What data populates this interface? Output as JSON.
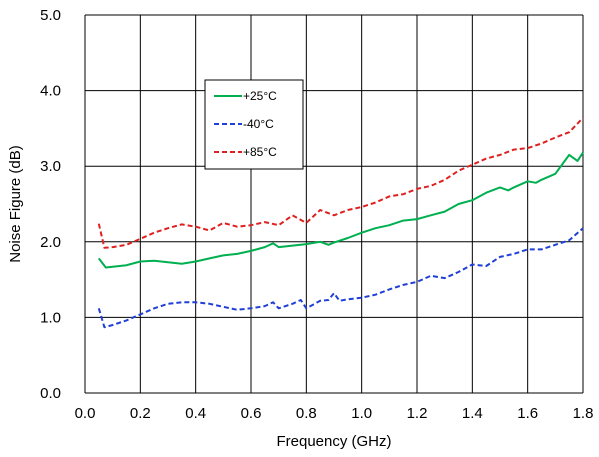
{
  "chart_data": {
    "type": "line",
    "title": "",
    "xlabel": "Frequency (GHz)",
    "ylabel": "Noise Figure (dB)",
    "xlim": [
      0,
      1.8
    ],
    "ylim": [
      0,
      5
    ],
    "xticks": [
      0,
      0.2,
      0.4,
      0.6,
      0.8,
      1.0,
      1.2,
      1.4,
      1.6,
      1.8
    ],
    "yticks": [
      0,
      1,
      2,
      3,
      4,
      5
    ],
    "xtick_labels": [
      "0.0",
      "0.2",
      "0.4",
      "0.6",
      "0.8",
      "1.0",
      "1.2",
      "1.4",
      "1.6",
      "1.8"
    ],
    "ytick_labels": [
      "0.0",
      "1.0",
      "2.0",
      "3.0",
      "4.0",
      "5.0"
    ],
    "grid": true,
    "legend_position": "upper-left-inside",
    "series": [
      {
        "name": "+25°C",
        "color": "#00b050",
        "dash": "solid",
        "x": [
          0.05,
          0.075,
          0.1,
          0.15,
          0.2,
          0.25,
          0.3,
          0.35,
          0.4,
          0.45,
          0.5,
          0.55,
          0.6,
          0.65,
          0.68,
          0.7,
          0.75,
          0.8,
          0.85,
          0.88,
          0.9,
          0.95,
          1.0,
          1.05,
          1.1,
          1.15,
          1.2,
          1.25,
          1.3,
          1.35,
          1.4,
          1.45,
          1.5,
          1.53,
          1.55,
          1.6,
          1.63,
          1.65,
          1.7,
          1.75,
          1.78,
          1.8
        ],
        "y": [
          1.78,
          1.66,
          1.67,
          1.69,
          1.74,
          1.75,
          1.73,
          1.71,
          1.74,
          1.78,
          1.82,
          1.84,
          1.88,
          1.93,
          1.98,
          1.93,
          1.95,
          1.97,
          2.0,
          1.96,
          1.99,
          2.05,
          2.12,
          2.18,
          2.22,
          2.28,
          2.3,
          2.35,
          2.4,
          2.5,
          2.55,
          2.65,
          2.72,
          2.68,
          2.72,
          2.8,
          2.78,
          2.82,
          2.9,
          3.15,
          3.07,
          3.18
        ]
      },
      {
        "name": "-40°C",
        "color": "#1f3fd6",
        "dash": "dashed",
        "x": [
          0.05,
          0.07,
          0.1,
          0.15,
          0.2,
          0.25,
          0.3,
          0.35,
          0.4,
          0.45,
          0.5,
          0.55,
          0.6,
          0.65,
          0.68,
          0.7,
          0.75,
          0.78,
          0.8,
          0.85,
          0.88,
          0.9,
          0.92,
          0.95,
          1.0,
          1.05,
          1.1,
          1.15,
          1.2,
          1.25,
          1.3,
          1.35,
          1.4,
          1.45,
          1.5,
          1.55,
          1.6,
          1.65,
          1.7,
          1.75,
          1.8
        ],
        "y": [
          1.12,
          0.87,
          0.9,
          0.96,
          1.04,
          1.12,
          1.18,
          1.2,
          1.2,
          1.18,
          1.14,
          1.1,
          1.12,
          1.15,
          1.2,
          1.12,
          1.18,
          1.23,
          1.12,
          1.22,
          1.23,
          1.32,
          1.22,
          1.24,
          1.26,
          1.3,
          1.37,
          1.43,
          1.47,
          1.55,
          1.52,
          1.6,
          1.7,
          1.68,
          1.8,
          1.84,
          1.9,
          1.9,
          1.96,
          2.02,
          2.18
        ]
      },
      {
        "name": "+85°C",
        "color": "#e02020",
        "dash": "dashed",
        "x": [
          0.05,
          0.07,
          0.1,
          0.15,
          0.2,
          0.25,
          0.3,
          0.35,
          0.4,
          0.45,
          0.5,
          0.55,
          0.6,
          0.65,
          0.7,
          0.75,
          0.8,
          0.85,
          0.9,
          0.95,
          1.0,
          1.05,
          1.1,
          1.15,
          1.2,
          1.25,
          1.3,
          1.35,
          1.4,
          1.45,
          1.5,
          1.55,
          1.6,
          1.65,
          1.7,
          1.75,
          1.8
        ],
        "y": [
          2.24,
          1.92,
          1.93,
          1.96,
          2.04,
          2.12,
          2.18,
          2.23,
          2.2,
          2.15,
          2.25,
          2.2,
          2.22,
          2.26,
          2.22,
          2.35,
          2.25,
          2.42,
          2.35,
          2.42,
          2.46,
          2.52,
          2.6,
          2.63,
          2.7,
          2.74,
          2.82,
          2.94,
          3.02,
          3.1,
          3.15,
          3.22,
          3.24,
          3.3,
          3.38,
          3.45,
          3.64
        ]
      }
    ]
  }
}
